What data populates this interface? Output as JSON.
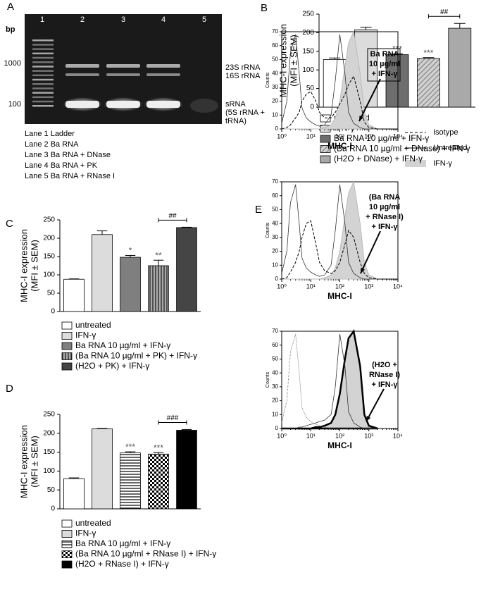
{
  "gel": {
    "panel": "A",
    "unit": "bp",
    "lanes": [
      "1",
      "2",
      "3",
      "4",
      "5"
    ],
    "markers": [
      "1000",
      "100"
    ],
    "bands": [
      "23S rRNA",
      "16S rRNA",
      "sRNA",
      "(5S rRNA +",
      "tRNA)"
    ],
    "legend": [
      "Lane 1 Ladder",
      "Lane 2 Ba RNA",
      "Lane 3 Ba RNA + DNase",
      "Lane 4 Ba RNA + PK",
      "Lane 5 Ba RNA + RNase I"
    ]
  },
  "panel_e": {
    "panel": "E",
    "legend": [
      "Isotype",
      "Untreated",
      "IFN-γ"
    ]
  },
  "chart_data": [
    {
      "type": "bar",
      "panel": "B",
      "ylabel": [
        "MHC-I expression",
        "(MFI ± SEM)"
      ],
      "categories": [
        "untreated",
        "IFN-γ",
        "Ba RNA 10 µg/ml + IFN-γ",
        "(Ba RNA 10 µg/ml + DNase) + IFN-γ",
        "(H2O + DNase) + IFN-γ"
      ],
      "values": [
        128,
        208,
        141,
        131,
        212
      ],
      "errors": [
        4,
        7,
        2,
        2,
        13
      ],
      "colors": [
        "#ffffff",
        "#dcdcdc",
        "#6e6e6e",
        "#bdbdbd",
        "#a9a9a9"
      ],
      "patterns": [
        null,
        null,
        null,
        "diagonal",
        null
      ],
      "value_annotations": [
        null,
        null,
        "***",
        "***",
        null
      ],
      "comparison_label": "##",
      "ylim": [
        0,
        250
      ],
      "yticks": [
        0,
        50,
        100,
        150,
        200,
        250
      ]
    },
    {
      "type": "bar",
      "panel": "C",
      "ylabel": [
        "MHC-I expression",
        "(MFI ± SEM)"
      ],
      "categories": [
        "untreated",
        "IFN-γ",
        "Ba RNA 10 µg/ml + IFN-γ",
        "(Ba RNA 10 µg/ml + PK) + IFN-γ",
        "(H2O + PK) + IFN-γ"
      ],
      "values": [
        88,
        210,
        148,
        125,
        229
      ],
      "errors": [
        1,
        10,
        5,
        15,
        1
      ],
      "colors": [
        "#ffffff",
        "#dcdcdc",
        "#7f7f7f",
        "#8a8a8a",
        "#454545"
      ],
      "patterns": [
        null,
        null,
        null,
        "vertical",
        null
      ],
      "value_annotations": [
        null,
        null,
        "*",
        "**",
        null
      ],
      "comparison_label": "##",
      "ylim": [
        0,
        250
      ],
      "yticks": [
        0,
        50,
        100,
        150,
        200,
        250
      ]
    },
    {
      "type": "bar",
      "panel": "D",
      "ylabel": [
        "MHC-I expression",
        "(MFI ± SEM)"
      ],
      "categories": [
        "untreated",
        "IFN-γ",
        "Ba RNA 10 µg/ml + IFN-γ",
        "(Ba RNA 10 µg/ml + RNase I) + IFN-γ",
        "(H2O + RNase I) + IFN-γ"
      ],
      "values": [
        80,
        212,
        148,
        145,
        208
      ],
      "errors": [
        2,
        1,
        3,
        4,
        2
      ],
      "colors": [
        "#ffffff",
        "#dcdcdc",
        "#ffffff",
        "#ffffff",
        "#000000"
      ],
      "patterns": [
        null,
        null,
        "horizontal",
        "checker",
        null
      ],
      "value_annotations": [
        null,
        null,
        "***",
        "***",
        null
      ],
      "comparison_label": "###",
      "ylim": [
        0,
        250
      ],
      "yticks": [
        0,
        50,
        100,
        150,
        200,
        250
      ]
    },
    {
      "type": "histogram",
      "xlabel": "MHC-I",
      "ylabel": "Counts",
      "annotation": [
        "Ba RNA",
        "10 µg/ml",
        "+ IFN-γ"
      ],
      "log_x": true,
      "xlim": [
        1,
        10000
      ],
      "xticks": [
        {
          "value": 1,
          "label": "10⁰"
        },
        {
          "value": 10,
          "label": "10¹"
        },
        {
          "value": 100,
          "label": "10²"
        },
        {
          "value": 1000,
          "label": "10³"
        },
        {
          "value": 10000,
          "label": "10⁴"
        }
      ],
      "ylim": [
        0,
        70
      ],
      "yticks": [
        0,
        10,
        20,
        30,
        40,
        50,
        60,
        70
      ],
      "x": [
        1,
        1.5,
        2,
        3,
        4,
        5,
        7,
        10,
        15,
        20,
        30,
        50,
        70,
        100,
        150,
        200,
        300,
        500,
        700,
        1000,
        2000
      ],
      "series": [
        {
          "style": "filled",
          "values": [
            0,
            0,
            0,
            0,
            0,
            0,
            0,
            0,
            0,
            0,
            1,
            3,
            8,
            20,
            45,
            62,
            70,
            40,
            12,
            3,
            0
          ]
        },
        {
          "style": "solid",
          "values": [
            4,
            20,
            55,
            68,
            40,
            15,
            8,
            5,
            3,
            2,
            3,
            10,
            35,
            68,
            40,
            12,
            4,
            1,
            0,
            0,
            0
          ]
        },
        {
          "style": "dashed",
          "values": [
            0,
            1,
            3,
            8,
            12,
            20,
            25,
            27,
            20,
            12,
            8,
            8,
            12,
            18,
            25,
            32,
            38,
            20,
            5,
            1,
            0
          ]
        }
      ]
    },
    {
      "type": "histogram",
      "xlabel": "MHC-I",
      "ylabel": "Counts",
      "annotation": [
        "(Ba RNA",
        "10 µg/ml",
        "+ RNase I)",
        "+ IFN-γ"
      ],
      "log_x": true,
      "xlim": [
        1,
        10000
      ],
      "xticks": [
        {
          "value": 1,
          "label": "10⁰"
        },
        {
          "value": 10,
          "label": "10¹"
        },
        {
          "value": 100,
          "label": "10²"
        },
        {
          "value": 1000,
          "label": "10³"
        },
        {
          "value": 10000,
          "label": "10⁴"
        }
      ],
      "ylim": [
        0,
        70
      ],
      "yticks": [
        0,
        10,
        20,
        30,
        40,
        50,
        60,
        70
      ],
      "x": [
        1,
        1.5,
        2,
        3,
        4,
        5,
        7,
        10,
        15,
        20,
        30,
        50,
        70,
        100,
        150,
        200,
        300,
        500,
        700,
        1000,
        2000
      ],
      "series": [
        {
          "style": "filled",
          "values": [
            0,
            0,
            0,
            0,
            0,
            0,
            0,
            0,
            0,
            0,
            1,
            3,
            8,
            20,
            45,
            62,
            70,
            40,
            12,
            3,
            0
          ]
        },
        {
          "style": "solid",
          "values": [
            4,
            20,
            55,
            68,
            40,
            15,
            8,
            5,
            3,
            2,
            3,
            10,
            35,
            68,
            40,
            12,
            4,
            1,
            0,
            0,
            0
          ]
        },
        {
          "style": "dashed",
          "values": [
            0,
            1,
            5,
            12,
            20,
            30,
            40,
            42,
            25,
            12,
            6,
            4,
            6,
            12,
            25,
            35,
            30,
            12,
            4,
            1,
            0
          ]
        }
      ]
    },
    {
      "type": "histogram",
      "xlabel": "MHC-I",
      "ylabel": "Counts",
      "annotation": [
        "(H2O +",
        "RNase I)",
        "+ IFN-γ"
      ],
      "log_x": true,
      "xlim": [
        1,
        10000
      ],
      "xticks": [
        {
          "value": 1,
          "label": "10⁰"
        },
        {
          "value": 10,
          "label": "10¹"
        },
        {
          "value": 100,
          "label": "10²"
        },
        {
          "value": 1000,
          "label": "10³"
        },
        {
          "value": 10000,
          "label": "10⁴"
        }
      ],
      "ylim": [
        0,
        70
      ],
      "yticks": [
        0,
        10,
        20,
        30,
        40,
        50,
        60,
        70
      ],
      "x": [
        1,
        1.5,
        2,
        3,
        4,
        5,
        7,
        10,
        15,
        20,
        30,
        50,
        70,
        100,
        150,
        200,
        300,
        500,
        700,
        1000,
        2000
      ],
      "series": [
        {
          "style": "filled-bold",
          "values": [
            0,
            0,
            0,
            0,
            0,
            0,
            0,
            0,
            1,
            1,
            2,
            4,
            10,
            25,
            50,
            65,
            70,
            45,
            10,
            2,
            0
          ]
        },
        {
          "style": "solid",
          "values": [
            0,
            0,
            0,
            0,
            1,
            1,
            2,
            3,
            4,
            5,
            6,
            10,
            30,
            68,
            45,
            12,
            4,
            1,
            0,
            0,
            0
          ]
        },
        {
          "style": "dotted",
          "values": [
            4,
            20,
            55,
            68,
            40,
            15,
            8,
            5,
            3,
            2,
            1,
            0,
            0,
            0,
            0,
            0,
            0,
            0,
            0,
            0,
            0
          ]
        }
      ]
    }
  ]
}
